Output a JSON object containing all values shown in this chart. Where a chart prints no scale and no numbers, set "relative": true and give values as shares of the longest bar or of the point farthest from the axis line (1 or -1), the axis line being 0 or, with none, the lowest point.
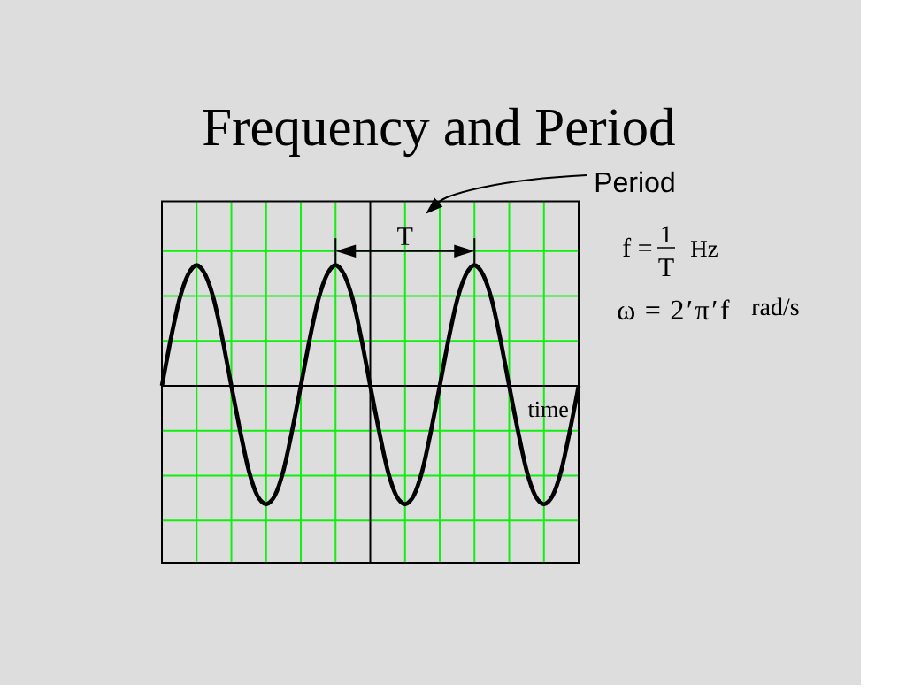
{
  "chart_data": {
    "type": "line",
    "title": "Frequency and Period",
    "xlabel": "time",
    "categories": [
      null,
      null,
      null,
      null,
      null,
      null,
      null,
      null,
      null,
      null,
      null,
      null,
      null,
      null,
      null,
      null,
      null,
      null,
      null,
      null,
      null,
      null,
      null,
      null,
      null,
      null,
      null,
      null,
      null,
      null,
      null,
      null,
      null,
      null,
      null,
      null,
      null,
      null,
      null,
      null,
      null,
      null,
      null,
      null,
      null,
      null,
      null,
      null,
      null
    ],
    "values": [
      0,
      0.38,
      0.71,
      0.92,
      1,
      0.92,
      0.71,
      0.38,
      0,
      -0.37,
      -0.7,
      -0.91,
      -0.98,
      -0.91,
      -0.7,
      -0.37,
      0,
      0.38,
      0.71,
      0.92,
      1,
      0.92,
      0.71,
      0.38,
      0,
      -0.37,
      -0.7,
      -0.91,
      -0.98,
      -0.91,
      -0.7,
      -0.37,
      0,
      0.38,
      0.71,
      0.92,
      1,
      0.92,
      0.71,
      0.38,
      0,
      -0.37,
      -0.7,
      -0.91,
      -0.98,
      -0.91,
      -0.7,
      -0.37,
      0
    ],
    "color": "#000000",
    "relative": true,
    "grid": true,
    "annotations": [
      "Period",
      "T",
      "f =",
      "1",
      "T",
      "Hz",
      "ω = 2′π′f",
      "rad/s"
    ]
  }
}
